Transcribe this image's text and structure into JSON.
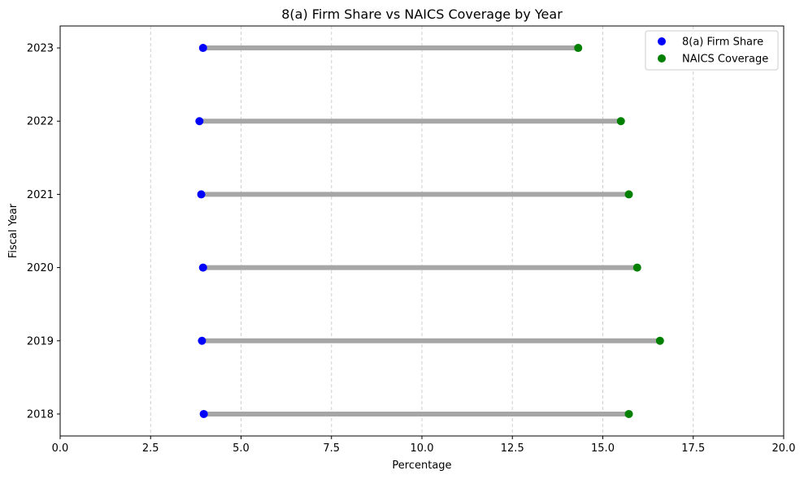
{
  "chart_data": {
    "type": "dumbbell",
    "title": "8(a) Firm Share vs NAICS Coverage by Year",
    "xlabel": "Percentage",
    "ylabel": "Fiscal Year",
    "xlim": [
      0,
      20
    ],
    "x_ticks": [
      "0.0",
      "2.5",
      "5.0",
      "7.5",
      "10.0",
      "12.5",
      "15.0",
      "17.5",
      "20.0"
    ],
    "categories": [
      "2018",
      "2019",
      "2020",
      "2021",
      "2022",
      "2023"
    ],
    "series": [
      {
        "name": "8(a) Firm Share",
        "color": "#0000ff",
        "values": [
          3.97,
          3.92,
          3.95,
          3.9,
          3.85,
          3.95
        ]
      },
      {
        "name": "NAICS Coverage",
        "color": "#008000",
        "values": [
          15.72,
          16.58,
          15.95,
          15.72,
          15.5,
          14.32
        ]
      }
    ],
    "connector_color": "#a6a6a6",
    "grid": {
      "x": true,
      "y": false,
      "style": "dashed"
    },
    "legend_position": "top-right"
  }
}
